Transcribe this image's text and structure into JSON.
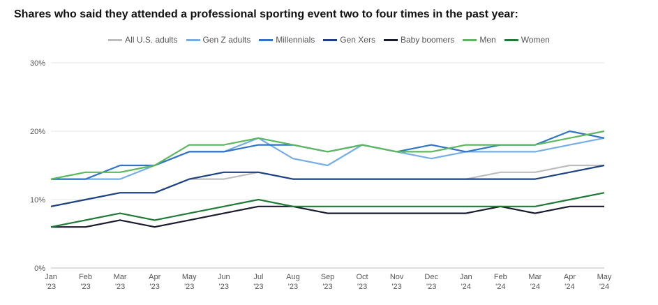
{
  "chart_data": {
    "type": "line",
    "title": "Shares who said they attended a professional sporting event two to four times in the past year:",
    "x": [
      "Jan '23",
      "Feb '23",
      "Mar '23",
      "Apr '23",
      "May '23",
      "Jun '23",
      "Jul '23",
      "Aug '23",
      "Sep '23",
      "Oct '23",
      "Nov '23",
      "Dec '23",
      "Jan '24",
      "Feb '24",
      "Mar '24",
      "Apr '24",
      "May '24"
    ],
    "x_ticks": [
      [
        "Jan",
        "'23"
      ],
      [
        "Feb",
        "'23"
      ],
      [
        "Mar",
        "'23"
      ],
      [
        "Apr",
        "'23"
      ],
      [
        "May",
        "'23"
      ],
      [
        "Jun",
        "'23"
      ],
      [
        "Jul",
        "'23"
      ],
      [
        "Aug",
        "'23"
      ],
      [
        "Sep",
        "'23"
      ],
      [
        "Oct",
        "'23"
      ],
      [
        "Nov",
        "'23"
      ],
      [
        "Dec",
        "'23"
      ],
      [
        "Jan",
        "'24"
      ],
      [
        "Feb",
        "'24"
      ],
      [
        "Mar",
        "'24"
      ],
      [
        "Apr",
        "'24"
      ],
      [
        "May",
        "'24"
      ]
    ],
    "y_ticks": [
      "0%",
      "10%",
      "20%",
      "30%"
    ],
    "ylim": [
      0,
      30
    ],
    "grid": true,
    "legend_position": "top-center",
    "series": [
      {
        "name": "All U.S. adults",
        "color": "#bdbdbd",
        "values": [
          9,
          10,
          11,
          11,
          13,
          13,
          14,
          13,
          13,
          13,
          13,
          13,
          13,
          14,
          14,
          15,
          15
        ]
      },
      {
        "name": "Gen Z adults",
        "color": "#74aee4",
        "values": [
          13,
          13,
          13,
          15,
          17,
          17,
          19,
          16,
          15,
          18,
          17,
          16,
          17,
          17,
          17,
          18,
          19
        ]
      },
      {
        "name": "Millennials",
        "color": "#2f74c6",
        "values": [
          13,
          13,
          15,
          15,
          17,
          17,
          18,
          18,
          17,
          18,
          17,
          18,
          17,
          18,
          18,
          20,
          19
        ]
      },
      {
        "name": "Gen Xers",
        "color": "#1d4283",
        "values": [
          9,
          10,
          11,
          11,
          13,
          14,
          14,
          13,
          13,
          13,
          13,
          13,
          13,
          13,
          13,
          14,
          15
        ]
      },
      {
        "name": "Baby boomers",
        "color": "#1a1a2e",
        "values": [
          6,
          6,
          7,
          6,
          7,
          8,
          9,
          9,
          8,
          8,
          8,
          8,
          8,
          9,
          8,
          9,
          9
        ]
      },
      {
        "name": "Men",
        "color": "#5cb85c",
        "values": [
          13,
          14,
          14,
          15,
          18,
          18,
          19,
          18,
          17,
          18,
          17,
          17,
          18,
          18,
          18,
          19,
          20
        ]
      },
      {
        "name": "Women",
        "color": "#1f7a36",
        "values": [
          6,
          7,
          8,
          7,
          8,
          9,
          10,
          9,
          9,
          9,
          9,
          9,
          9,
          9,
          9,
          10,
          11
        ]
      }
    ]
  }
}
